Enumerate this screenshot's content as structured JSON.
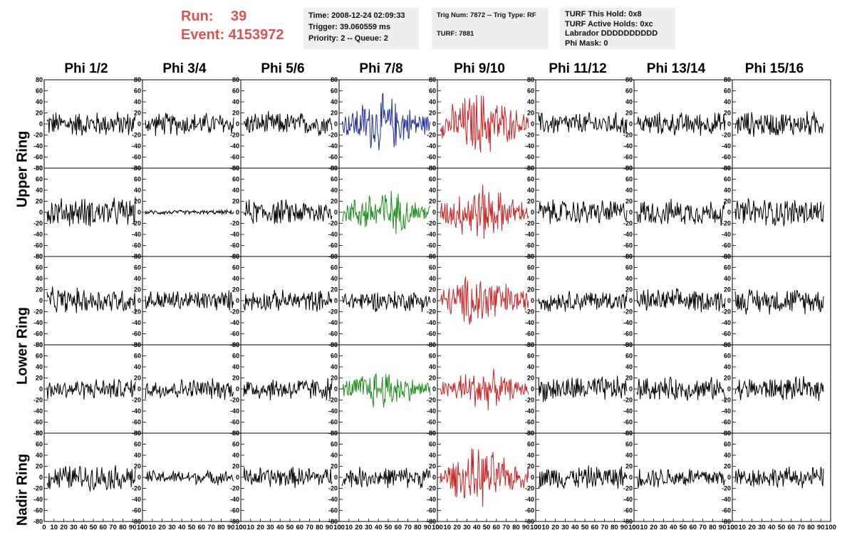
{
  "header": {
    "run_label": "Run:",
    "run_value": "39",
    "event_label": "Event:",
    "event_value": "4153972"
  },
  "info1": {
    "time": "Time: 2008-12-24 02:09:33",
    "trigger": "Trigger: 39.060559 ms",
    "priority": "Priority: 2 -- Queue: 2"
  },
  "info2": {
    "trig": "Trig Num: 7872 -- Trig Type: RF",
    "turf": "TURF: 7881"
  },
  "info3": {
    "hold": "TURF This Hold: 0x8",
    "active": "TURF Active Holds: 0xc",
    "labrador": "Labrador DDDDDDDDDD",
    "phimask": "Phi Mask: 0"
  },
  "columns": [
    "Phi 1/2",
    "Phi 3/4",
    "Phi 5/6",
    "Phi 7/8",
    "Phi 9/10",
    "Phi 11/12",
    "Phi 13/14",
    "Phi 15/16"
  ],
  "rings": [
    "Upper Ring",
    "Lower Ring",
    "Nadir Ring"
  ],
  "colors": {
    "black": "#000000",
    "blue": "#1f2f9a",
    "green": "#1e8c1e",
    "red": "#cc2222",
    "title": "#d9534f",
    "infobg": "#eeeeee"
  },
  "chart_data": {
    "type": "line",
    "x_ticks": [
      "0",
      "10",
      "20",
      "30",
      "40",
      "50",
      "60",
      "70",
      "80",
      "90",
      "100"
    ],
    "y_ticks": [
      "80",
      "60",
      "40",
      "20",
      "0",
      "-20",
      "-40",
      "-60",
      "-80"
    ],
    "xlim": [
      0,
      100
    ],
    "ylim": [
      -80,
      80
    ],
    "panels": [
      [
        "black",
        "black",
        "black",
        "blue",
        "red",
        "black",
        "black",
        "black"
      ],
      [
        "black",
        "black",
        "black",
        "green",
        "red",
        "black",
        "black",
        "black"
      ],
      [
        "black",
        "black",
        "black",
        "black",
        "red",
        "black",
        "black",
        "black"
      ],
      [
        "black",
        "black",
        "black",
        "green",
        "red",
        "black",
        "black",
        "black"
      ],
      [
        "black",
        "black",
        "black",
        "black",
        "red",
        "black",
        "black",
        "black"
      ]
    ],
    "amplitudes": [
      [
        22,
        20,
        20,
        35,
        40,
        20,
        20,
        22
      ],
      [
        25,
        4,
        22,
        30,
        35,
        22,
        22,
        25
      ],
      [
        22,
        18,
        18,
        18,
        35,
        18,
        20,
        22
      ],
      [
        18,
        18,
        20,
        25,
        25,
        22,
        20,
        20
      ],
      [
        22,
        12,
        18,
        18,
        35,
        20,
        18,
        18
      ]
    ]
  }
}
